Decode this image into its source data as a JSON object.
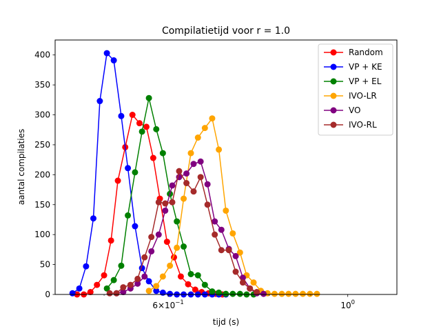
{
  "chart_data": {
    "type": "line",
    "title": "Compilatietijd voor r = 1.0",
    "xlabel": "tijd (s)",
    "ylabel": "aantal compilaties",
    "xscale": "log",
    "xlim": [
      0.435,
      1.15
    ],
    "ylim": [
      0,
      425
    ],
    "xticks": [
      {
        "value": 0.6,
        "base": "6",
        "sep": "×",
        "mant": "10",
        "exp": "−1"
      },
      {
        "value": 1.0,
        "base": "",
        "sep": "",
        "mant": "10",
        "exp": "0"
      }
    ],
    "yticks": [
      0,
      50,
      100,
      150,
      200,
      250,
      300,
      350,
      400
    ],
    "legend_position": "top-right",
    "grid": false,
    "series": [
      {
        "name": "Random",
        "color": "#ff0000",
        "points": [
          [
            0.463,
            0
          ],
          [
            0.472,
            0
          ],
          [
            0.481,
            4
          ],
          [
            0.49,
            16
          ],
          [
            0.5,
            32
          ],
          [
            0.51,
            90
          ],
          [
            0.52,
            190
          ],
          [
            0.531,
            246
          ],
          [
            0.542,
            300
          ],
          [
            0.553,
            286
          ],
          [
            0.564,
            280
          ],
          [
            0.575,
            228
          ],
          [
            0.586,
            160
          ],
          [
            0.598,
            88
          ],
          [
            0.61,
            62
          ],
          [
            0.622,
            30
          ],
          [
            0.635,
            17
          ],
          [
            0.648,
            8
          ],
          [
            0.66,
            4
          ],
          [
            0.673,
            2
          ],
          [
            0.687,
            1
          ],
          [
            0.7,
            0
          ]
        ]
      },
      {
        "name": "VP + KE",
        "color": "#0000ff",
        "points": [
          [
            0.457,
            2
          ],
          [
            0.466,
            10
          ],
          [
            0.475,
            47
          ],
          [
            0.485,
            127
          ],
          [
            0.494,
            323
          ],
          [
            0.504,
            403
          ],
          [
            0.514,
            391
          ],
          [
            0.525,
            298
          ],
          [
            0.535,
            211
          ],
          [
            0.546,
            114
          ],
          [
            0.557,
            44
          ],
          [
            0.568,
            22
          ],
          [
            0.58,
            6
          ],
          [
            0.591,
            3
          ],
          [
            0.603,
            1
          ],
          [
            0.615,
            0
          ],
          [
            0.627,
            0
          ],
          [
            0.64,
            0
          ],
          [
            0.653,
            0
          ],
          [
            0.666,
            0
          ],
          [
            0.68,
            0
          ],
          [
            0.693,
            0
          ],
          [
            0.707,
            0
          ]
        ]
      },
      {
        "name": "VP + EL",
        "color": "#008000",
        "points": [
          [
            0.504,
            10
          ],
          [
            0.514,
            24
          ],
          [
            0.525,
            48
          ],
          [
            0.535,
            132
          ],
          [
            0.546,
            204
          ],
          [
            0.557,
            272
          ],
          [
            0.568,
            328
          ],
          [
            0.58,
            276
          ],
          [
            0.591,
            236
          ],
          [
            0.603,
            168
          ],
          [
            0.615,
            122
          ],
          [
            0.627,
            80
          ],
          [
            0.64,
            34
          ],
          [
            0.653,
            32
          ],
          [
            0.666,
            16
          ],
          [
            0.68,
            5
          ],
          [
            0.693,
            3
          ],
          [
            0.707,
            1
          ],
          [
            0.721,
            1
          ],
          [
            0.736,
            1
          ],
          [
            0.75,
            0
          ],
          [
            0.765,
            0
          ]
        ]
      },
      {
        "name": "IVO-LR",
        "color": "#ffa500",
        "points": [
          [
            0.568,
            6
          ],
          [
            0.58,
            14
          ],
          [
            0.591,
            30
          ],
          [
            0.603,
            48
          ],
          [
            0.615,
            78
          ],
          [
            0.627,
            160
          ],
          [
            0.64,
            236
          ],
          [
            0.653,
            262
          ],
          [
            0.666,
            278
          ],
          [
            0.68,
            294
          ],
          [
            0.693,
            242
          ],
          [
            0.707,
            140
          ],
          [
            0.721,
            102
          ],
          [
            0.736,
            70
          ],
          [
            0.75,
            32
          ],
          [
            0.765,
            20
          ],
          [
            0.781,
            6
          ],
          [
            0.796,
            2
          ],
          [
            0.812,
            1
          ],
          [
            0.829,
            1
          ],
          [
            0.845,
            1
          ],
          [
            0.862,
            1
          ],
          [
            0.88,
            1
          ],
          [
            0.898,
            1
          ],
          [
            0.916,
            1
          ]
        ]
      },
      {
        "name": "VO",
        "color": "#800080",
        "points": [
          [
            0.518,
            2
          ],
          [
            0.528,
            4
          ],
          [
            0.539,
            10
          ],
          [
            0.55,
            18
          ],
          [
            0.561,
            30
          ],
          [
            0.572,
            72
          ],
          [
            0.584,
            100
          ],
          [
            0.595,
            140
          ],
          [
            0.607,
            182
          ],
          [
            0.619,
            196
          ],
          [
            0.632,
            202
          ],
          [
            0.645,
            218
          ],
          [
            0.658,
            222
          ],
          [
            0.671,
            184
          ],
          [
            0.685,
            122
          ],
          [
            0.698,
            108
          ],
          [
            0.713,
            76
          ],
          [
            0.727,
            64
          ],
          [
            0.742,
            28
          ],
          [
            0.757,
            10
          ],
          [
            0.772,
            2
          ],
          [
            0.787,
            1
          ]
        ]
      },
      {
        "name": "IVO-RL",
        "color": "#a52a2a",
        "points": [
          [
            0.508,
            2
          ],
          [
            0.518,
            2
          ],
          [
            0.528,
            12
          ],
          [
            0.539,
            16
          ],
          [
            0.55,
            26
          ],
          [
            0.561,
            62
          ],
          [
            0.572,
            96
          ],
          [
            0.584,
            154
          ],
          [
            0.595,
            152
          ],
          [
            0.607,
            154
          ],
          [
            0.619,
            206
          ],
          [
            0.632,
            186
          ],
          [
            0.645,
            172
          ],
          [
            0.658,
            196
          ],
          [
            0.671,
            150
          ],
          [
            0.685,
            100
          ],
          [
            0.698,
            74
          ],
          [
            0.713,
            74
          ],
          [
            0.727,
            38
          ],
          [
            0.742,
            20
          ],
          [
            0.757,
            10
          ],
          [
            0.772,
            4
          ]
        ]
      }
    ]
  }
}
